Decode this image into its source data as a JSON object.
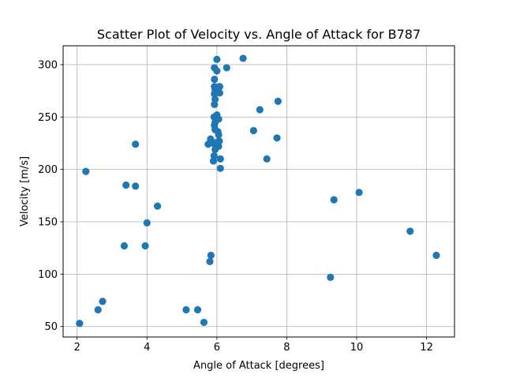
{
  "chart_data": {
    "type": "scatter",
    "title": "Scatter Plot of Velocity vs. Angle of Attack for B787",
    "xlabel": "Angle of Attack [degrees]",
    "ylabel": "Velocity [m/s]",
    "xlim": [
      1.6,
      12.8
    ],
    "ylim": [
      40,
      318
    ],
    "xticks": [
      2,
      4,
      6,
      8,
      10,
      12
    ],
    "yticks": [
      50,
      100,
      150,
      200,
      250,
      300
    ],
    "grid": true,
    "marker_color": "#1f77b4",
    "points": [
      [
        2.07,
        53
      ],
      [
        2.25,
        198
      ],
      [
        2.6,
        66
      ],
      [
        2.73,
        74
      ],
      [
        3.35,
        127
      ],
      [
        3.4,
        185
      ],
      [
        3.67,
        184
      ],
      [
        3.67,
        224
      ],
      [
        3.95,
        127
      ],
      [
        4.0,
        149
      ],
      [
        4.3,
        165
      ],
      [
        5.12,
        66
      ],
      [
        5.45,
        66
      ],
      [
        5.63,
        54
      ],
      [
        5.8,
        112
      ],
      [
        5.83,
        118
      ],
      [
        5.75,
        224
      ],
      [
        5.82,
        229
      ],
      [
        5.9,
        208
      ],
      [
        5.92,
        213
      ],
      [
        5.95,
        219
      ],
      [
        5.9,
        225
      ],
      [
        5.95,
        238
      ],
      [
        5.93,
        242
      ],
      [
        5.95,
        245
      ],
      [
        5.92,
        250
      ],
      [
        6.0,
        252
      ],
      [
        6.05,
        248
      ],
      [
        6.03,
        236
      ],
      [
        6.0,
        226
      ],
      [
        6.05,
        222
      ],
      [
        6.1,
        210
      ],
      [
        6.1,
        201
      ],
      [
        6.07,
        227
      ],
      [
        6.05,
        233
      ],
      [
        5.93,
        262
      ],
      [
        5.95,
        267
      ],
      [
        5.93,
        272
      ],
      [
        5.95,
        276
      ],
      [
        5.93,
        279
      ],
      [
        5.93,
        286
      ],
      [
        5.93,
        297
      ],
      [
        6.0,
        294
      ],
      [
        6.0,
        305
      ],
      [
        6.08,
        273
      ],
      [
        6.08,
        279
      ],
      [
        6.28,
        297
      ],
      [
        6.75,
        306
      ],
      [
        7.05,
        237
      ],
      [
        7.23,
        257
      ],
      [
        7.43,
        210
      ],
      [
        7.72,
        230
      ],
      [
        7.75,
        265
      ],
      [
        9.25,
        97
      ],
      [
        9.35,
        171
      ],
      [
        10.07,
        178
      ],
      [
        11.53,
        141
      ],
      [
        12.28,
        118
      ]
    ]
  }
}
